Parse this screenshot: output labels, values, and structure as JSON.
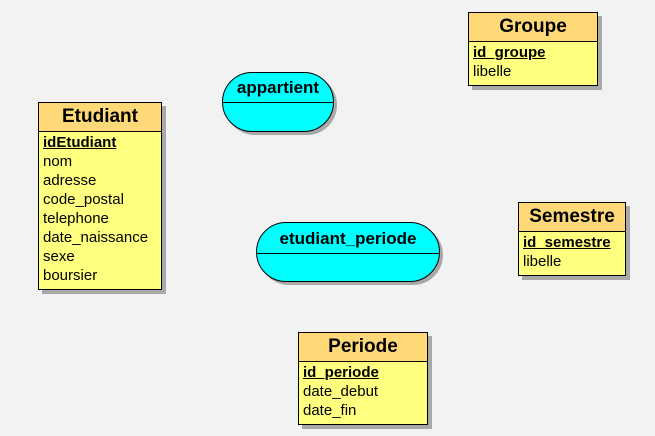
{
  "entities": {
    "etudiant": {
      "name": "Etudiant",
      "primary_key": "idEtudiant",
      "attributes": [
        "nom",
        "adresse",
        "code_postal",
        "telephone",
        "date_naissance",
        "sexe",
        "boursier"
      ]
    },
    "groupe": {
      "name": "Groupe",
      "primary_key": "id_groupe",
      "attributes": [
        "libelle"
      ]
    },
    "semestre": {
      "name": "Semestre",
      "primary_key": "id_semestre",
      "attributes": [
        "libelle"
      ]
    },
    "periode": {
      "name": "Periode",
      "primary_key": "id_periode",
      "attributes": [
        "date_debut",
        "date_fin"
      ]
    }
  },
  "relations": {
    "appartient": {
      "name": "appartient"
    },
    "etudiant_periode": {
      "name": "etudiant_periode"
    }
  },
  "colors": {
    "background": "#f2f2f2",
    "entity_header": "#ffd878",
    "entity_body": "#ffff80",
    "relation_fill": "#00ffff",
    "shadow": "#a8a8a8"
  }
}
